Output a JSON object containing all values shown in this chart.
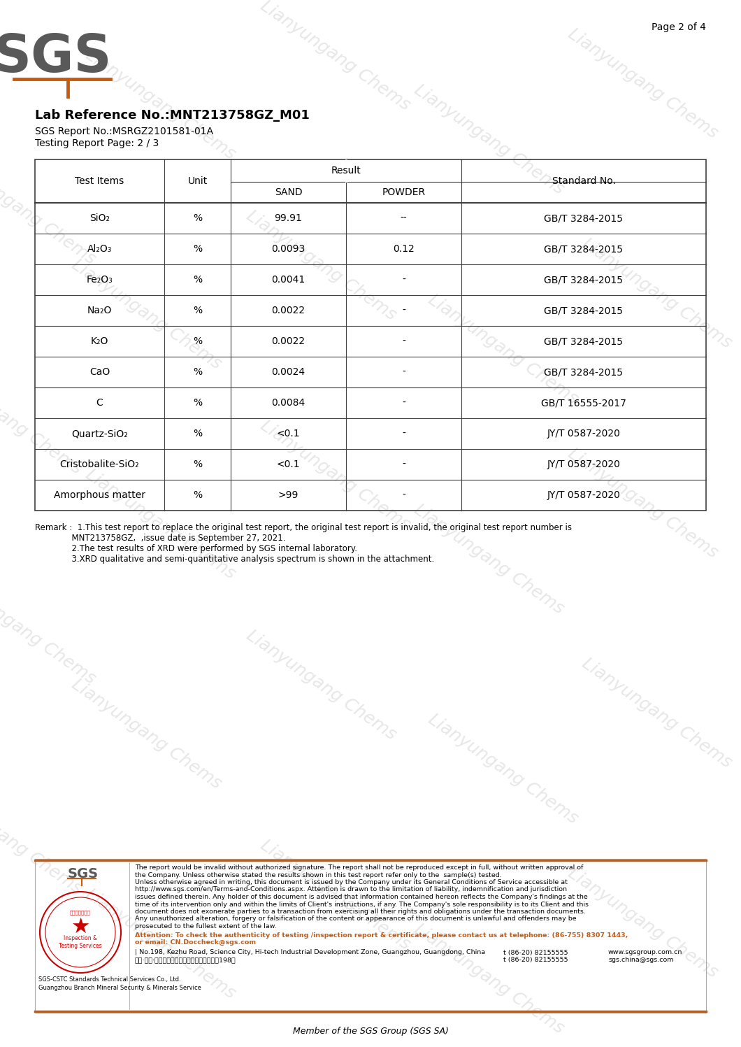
{
  "page_text": "Page 2 of 4",
  "lab_ref": "Lab Reference No.:MNT213758GZ_M01",
  "sgs_report": "SGS Report No.:MSRGZ2101581-01A",
  "testing_page": "Testing Report Page: 2 / 3",
  "result_header": "Result",
  "rows": [
    [
      "SiO₂",
      "%",
      "99.91",
      "--",
      "GB/T 3284-2015"
    ],
    [
      "Al₂O₃",
      "%",
      "0.0093",
      "0.12",
      "GB/T 3284-2015"
    ],
    [
      "Fe₂O₃",
      "%",
      "0.0041",
      "-",
      "GB/T 3284-2015"
    ],
    [
      "Na₂O",
      "%",
      "0.0022",
      "-",
      "GB/T 3284-2015"
    ],
    [
      "K₂O",
      "%",
      "0.0022",
      "-",
      "GB/T 3284-2015"
    ],
    [
      "CaO",
      "%",
      "0.0024",
      "-",
      "GB/T 3284-2015"
    ],
    [
      "C",
      "%",
      "0.0084",
      "-",
      "GB/T 16555-2017"
    ],
    [
      "Quartz-SiO₂",
      "%",
      "<0.1",
      "-",
      "JY/T 0587-2020"
    ],
    [
      "Cristobalite-SiO₂",
      "%",
      "<0.1",
      "-",
      "JY/T 0587-2020"
    ],
    [
      "Amorphous matter",
      "%",
      ">99",
      "-",
      "JY/T 0587-2020"
    ]
  ],
  "remark_lines": [
    "Remark :  1.This test report to replace the original test report, the original test report is invalid, the original test report number is",
    "              MNT213758GZ,  ,issue date is September 27, 2021.",
    "              2.The test results of XRD were performed by SGS internal laboratory.",
    "              3.XRD qualitative and semi-quantitative analysis spectrum is shown in the attachment."
  ],
  "footer_disclaimer_lines": [
    "The report would be invalid without authorized signature. The report shall not be reproduced except in full, without written approval of",
    "the Company. Unless otherwise stated the results shown in this test report refer only to the  sample(s) tested.",
    "Unless otherwise agreed in writing, this document is issued by the Company under its General Conditions of Service accessible at",
    "http://www.sgs.com/en/Terms-and-Conditions.aspx. Attention is drawn to the limitation of liability, indemnification and jurisdiction",
    "issues defined therein. Any holder of this document is advised that information contained hereon reflects the Company's findings at the",
    "time of its intervention only and within the limits of Client's instructions, if any. The Company's sole responsibility is to its Client and this",
    "document does not exonerate parties to a transaction from exercising all their rights and obligations under the transaction documents.",
    "Any unauthorized alteration, forgery or falsification of the content or appearance of this document is unlawful and offenders may be",
    "prosecuted to the fullest extent of the law."
  ],
  "footer_attention_lines": [
    "Attention: To check the authenticity of testing /inspection report & certificate, please contact us at telephone: (86-755) 8307 1443,",
    "or email: CN.Doccheck@sgs.com"
  ],
  "footer_address": "| No.198, Kezhu Road, Science City, Hi-tech Industrial Development Zone, Guangzhou, Guangdong, China",
  "footer_country": "中国·广东·广州高新技术产业开发区科学城珠江198号",
  "footer_company_line1": "SGS-CSTC Standards Technical Services Co., Ltd.",
  "footer_company_line2": "Guangzhou Branch Mineral Security & Minerals Service",
  "footer_tel1_label": "t (86-20) 82155555",
  "footer_tel1_web": "www.sgsgroup.com.cn",
  "footer_tel2_label": "t (86-20) 82155555",
  "footer_tel2_email": "sgs.china@sgs.com",
  "member_text": "Member of the SGS Group (SGS SA)",
  "watermark_text": "Lianyungang Chems",
  "sgs_color": "#595959",
  "orange_color": "#c55a11",
  "table_border_color": "#404040",
  "bg_color": "#ffffff",
  "watermark_color": "#d8d8d8",
  "footer_line_color": "#c55a11",
  "attention_color": "#c55a11"
}
